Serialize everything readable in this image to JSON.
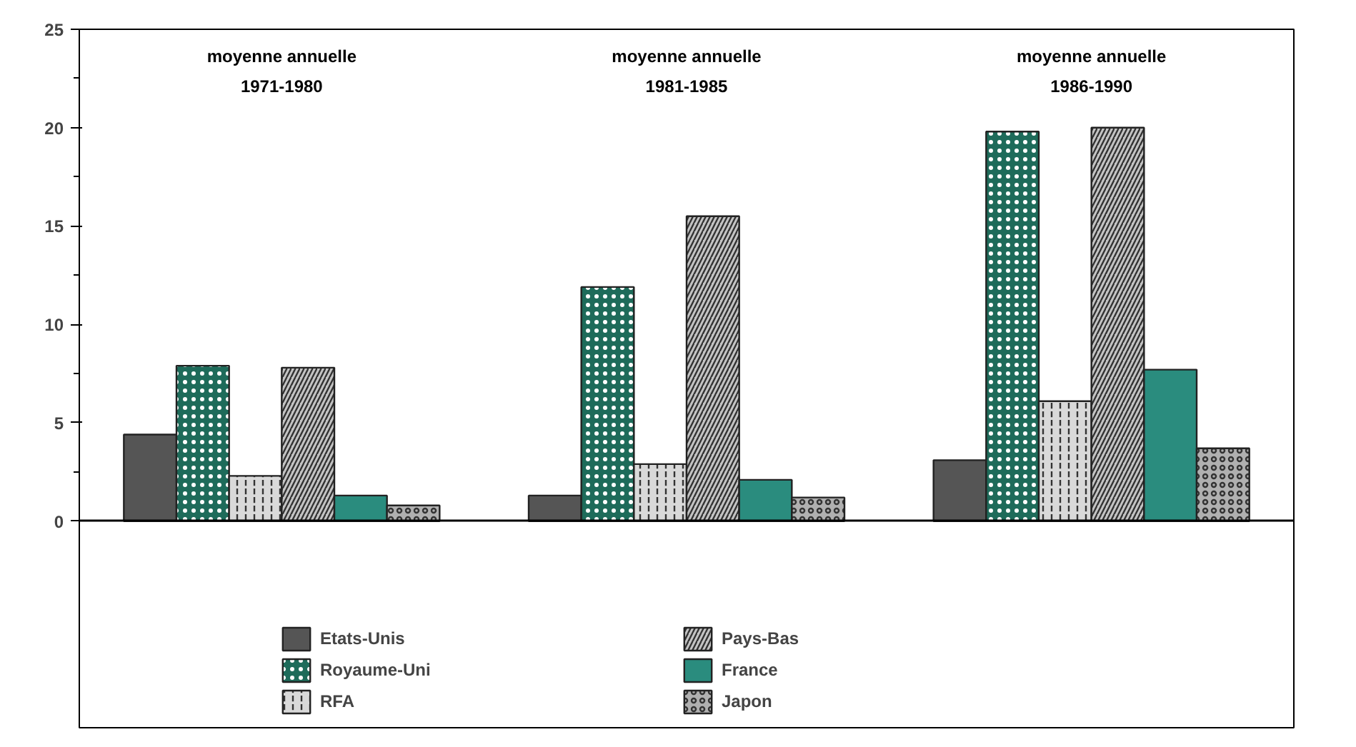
{
  "chart_data": {
    "type": "bar",
    "categories": [
      "moyenne annuelle\n1971-1980",
      "moyenne annuelle\n1981-1985",
      "moyenne annuelle\n1986-1990"
    ],
    "series": [
      {
        "name": "Etats-Unis",
        "color": "#555555",
        "values": [
          4.4,
          1.3,
          3.1
        ]
      },
      {
        "name": "Royaume-Uni",
        "color": "#1e6b5a",
        "values": [
          7.9,
          11.9,
          19.8
        ]
      },
      {
        "name": "RFA",
        "color": "#d9d9d9",
        "values": [
          2.3,
          2.9,
          6.1
        ]
      },
      {
        "name": "Pays-Bas",
        "color": "#c4c4c4",
        "values": [
          7.8,
          15.5,
          20.0
        ]
      },
      {
        "name": "France",
        "color": "#2a8c7e",
        "values": [
          1.3,
          2.1,
          7.7
        ]
      },
      {
        "name": "Japon",
        "color": "#b0b0b0",
        "values": [
          0.8,
          1.2,
          3.7
        ]
      }
    ],
    "ylim": [
      0,
      25
    ],
    "yticks": [
      0,
      5,
      10,
      15,
      20,
      25
    ],
    "grid": false,
    "legend": "bottom"
  }
}
